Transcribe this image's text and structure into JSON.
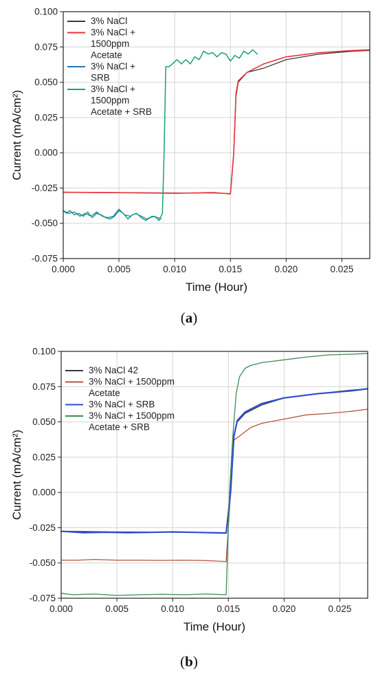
{
  "chart_data": [
    {
      "type": "line",
      "caption": "a",
      "xlabel": "Time (Hour)",
      "ylabel": "Current (mA/cm²)",
      "xlim": [
        0,
        0.0275
      ],
      "ylim": [
        -0.075,
        0.1
      ],
      "xticks": [
        "0.000",
        "0.005",
        "0.010",
        "0.015",
        "0.020",
        "0.025"
      ],
      "yticks": [
        "-0.075",
        "-0.050",
        "-0.025",
        "0.000",
        "0.025",
        "0.050",
        "0.075",
        "0.100"
      ],
      "grid": true,
      "legend_position": "top-left",
      "series": [
        {
          "name": "3% NaCl",
          "color": "#3a3a3a",
          "width": 1.3,
          "x": [
            0,
            0.005,
            0.01,
            0.0135,
            0.015,
            0.0153,
            0.0155,
            0.0157,
            0.0165,
            0.018,
            0.02,
            0.023,
            0.026,
            0.0275
          ],
          "y": [
            -0.028,
            -0.0283,
            -0.0285,
            -0.0285,
            -0.029,
            0.0,
            0.04,
            0.05,
            0.057,
            0.06,
            0.066,
            0.07,
            0.072,
            0.0725
          ]
        },
        {
          "name": "3% NaCl + 1500ppm Acetate",
          "color": "#e8323c",
          "width": 1.6,
          "x": [
            0,
            0.005,
            0.01,
            0.0135,
            0.015,
            0.0153,
            0.0155,
            0.0157,
            0.0165,
            0.018,
            0.02,
            0.023,
            0.026,
            0.0275
          ],
          "y": [
            -0.028,
            -0.0283,
            -0.0287,
            -0.0282,
            -0.0292,
            0.0,
            0.042,
            0.051,
            0.057,
            0.063,
            0.068,
            0.071,
            0.0725,
            0.073
          ]
        },
        {
          "name": "3% NaCl + SRB",
          "color": "#1f77b4",
          "width": 1.3,
          "x": [
            0,
            0.0005,
            0.001,
            0.0015,
            0.002,
            0.0025,
            0.003,
            0.0035,
            0.004,
            0.0045,
            0.005,
            0.0055,
            0.006,
            0.0065,
            0.007,
            0.0075,
            0.008,
            0.0085,
            0.0088
          ],
          "y": [
            -0.041,
            -0.043,
            -0.042,
            -0.045,
            -0.043,
            -0.045,
            -0.042,
            -0.045,
            -0.046,
            -0.045,
            -0.04,
            -0.044,
            -0.045,
            -0.043,
            -0.045,
            -0.047,
            -0.045,
            -0.046,
            -0.047
          ]
        },
        {
          "name": "3% NaCl + 1500ppm Acetate + SRB",
          "color": "#1a9e77",
          "width": 1.5,
          "x": [
            0,
            0.0003,
            0.0006,
            0.001,
            0.0014,
            0.0018,
            0.0022,
            0.0026,
            0.003,
            0.0034,
            0.0038,
            0.0042,
            0.0046,
            0.005,
            0.0054,
            0.0058,
            0.0062,
            0.0066,
            0.007,
            0.0074,
            0.0078,
            0.0082,
            0.0086,
            0.0089,
            0.00905,
            0.0092,
            0.0095,
            0.0098,
            0.0102,
            0.0106,
            0.011,
            0.0114,
            0.0118,
            0.0122,
            0.0126,
            0.013,
            0.0134,
            0.0138,
            0.0142,
            0.0146,
            0.015,
            0.0154,
            0.0158,
            0.0162,
            0.0166,
            0.017,
            0.0174
          ],
          "y": [
            -0.041,
            -0.043,
            -0.041,
            -0.044,
            -0.043,
            -0.045,
            -0.042,
            -0.046,
            -0.043,
            -0.044,
            -0.046,
            -0.047,
            -0.045,
            -0.041,
            -0.043,
            -0.047,
            -0.044,
            -0.043,
            -0.046,
            -0.048,
            -0.046,
            -0.045,
            -0.048,
            -0.043,
            0.0,
            0.061,
            0.061,
            0.063,
            0.066,
            0.063,
            0.066,
            0.063,
            0.068,
            0.066,
            0.072,
            0.07,
            0.071,
            0.068,
            0.071,
            0.07,
            0.065,
            0.069,
            0.067,
            0.072,
            0.07,
            0.073,
            0.07
          ]
        }
      ],
      "legend": [
        {
          "lines": [
            "3% NaCl"
          ],
          "color": "#3a3a3a"
        },
        {
          "lines": [
            "3% NaCl +",
            "1500ppm",
            "Acetate"
          ],
          "color": "#e8323c"
        },
        {
          "lines": [
            "3% NaCl +",
            "SRB"
          ],
          "color": "#1f77b4"
        },
        {
          "lines": [
            "3% NaCl +",
            "1500ppm",
            "Acetate + SRB"
          ],
          "color": "#1a9e77"
        }
      ]
    },
    {
      "type": "line",
      "caption": "b",
      "xlabel": "Time (Hour)",
      "ylabel": "Current (mA/cm²)",
      "xlim": [
        0,
        0.0275
      ],
      "ylim": [
        -0.075,
        0.1
      ],
      "xticks": [
        "0.000",
        "0.005",
        "0.010",
        "0.015",
        "0.020",
        "0.025"
      ],
      "yticks": [
        "-0.075",
        "-0.050",
        "-0.025",
        "0.000",
        "0.025",
        "0.050",
        "0.075",
        "0.100"
      ],
      "grid": true,
      "legend_position": "top-left",
      "series": [
        {
          "name": "3% NaCl 42",
          "color": "#3a3a3a",
          "width": 1.3,
          "x": [
            0,
            0.005,
            0.01,
            0.0148,
            0.0152,
            0.0155,
            0.0158,
            0.0165,
            0.018,
            0.02,
            0.023,
            0.026,
            0.0275
          ],
          "y": [
            -0.0275,
            -0.028,
            -0.0282,
            -0.0285,
            0.0,
            0.04,
            0.05,
            0.056,
            0.062,
            0.067,
            0.07,
            0.0725,
            0.0735
          ]
        },
        {
          "name": "3% NaCl + 1500ppm Acetate",
          "color": "#b5533c",
          "width": 1.3,
          "x": [
            0,
            0.0015,
            0.003,
            0.005,
            0.007,
            0.009,
            0.011,
            0.013,
            0.0148,
            0.0152,
            0.0155,
            0.016,
            0.017,
            0.018,
            0.02,
            0.022,
            0.024,
            0.026,
            0.0275
          ],
          "y": [
            -0.048,
            -0.048,
            -0.0475,
            -0.048,
            -0.048,
            -0.0482,
            -0.048,
            -0.0483,
            -0.049,
            0.0,
            0.037,
            0.04,
            0.046,
            0.049,
            0.052,
            0.055,
            0.056,
            0.0575,
            0.059
          ]
        },
        {
          "name": "3% NaCl + SRB",
          "color": "#2f4bd1",
          "width": 2.2,
          "x": [
            0,
            0.002,
            0.004,
            0.006,
            0.008,
            0.01,
            0.012,
            0.0148,
            0.0152,
            0.0155,
            0.0158,
            0.0165,
            0.018,
            0.02,
            0.023,
            0.026,
            0.0275
          ],
          "y": [
            -0.0275,
            -0.0285,
            -0.0282,
            -0.0285,
            -0.0283,
            -0.028,
            -0.0283,
            -0.0288,
            0.0,
            0.04,
            0.051,
            0.057,
            0.063,
            0.067,
            0.07,
            0.072,
            0.0735
          ]
        },
        {
          "name": "3% NaCl + 1500ppm Acetate + SRB",
          "color": "#3c8a55",
          "width": 1.3,
          "x": [
            0,
            0.001,
            0.003,
            0.005,
            0.007,
            0.009,
            0.011,
            0.013,
            0.0148,
            0.0151,
            0.0154,
            0.0157,
            0.016,
            0.0165,
            0.017,
            0.018,
            0.02,
            0.022,
            0.024,
            0.026,
            0.0275
          ],
          "y": [
            -0.0715,
            -0.0725,
            -0.072,
            -0.073,
            -0.0725,
            -0.0722,
            -0.0725,
            -0.072,
            -0.0725,
            0.0,
            0.04,
            0.07,
            0.082,
            0.088,
            0.09,
            0.092,
            0.094,
            0.096,
            0.0975,
            0.098,
            0.0985
          ]
        }
      ],
      "legend": [
        {
          "lines": [
            "3% NaCl 42"
          ],
          "color": "#3a3a3a"
        },
        {
          "lines": [
            "3% NaCl + 1500ppm",
            "Acetate"
          ],
          "color": "#b5533c"
        },
        {
          "lines": [
            "3% NaCl + SRB"
          ],
          "color": "#2f4bd1"
        },
        {
          "lines": [
            "3% NaCl + 1500ppm",
            "Acetate + SRB"
          ],
          "color": "#3c8a55"
        }
      ]
    }
  ]
}
